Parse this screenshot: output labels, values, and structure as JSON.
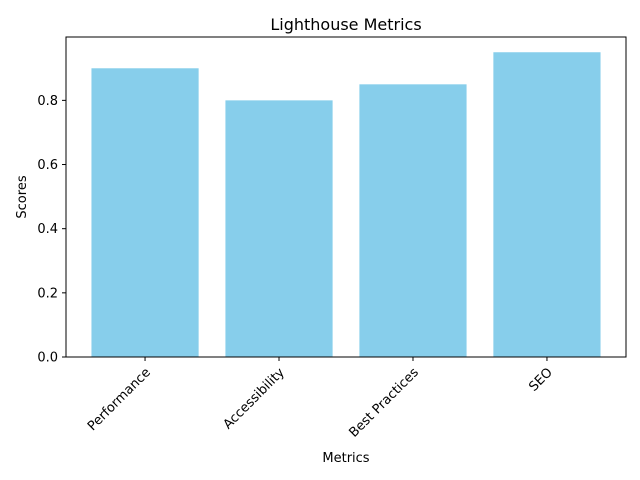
{
  "chart_data": {
    "type": "bar",
    "title": "Lighthouse Metrics",
    "xlabel": "Metrics",
    "ylabel": "Scores",
    "categories": [
      "Performance",
      "Accessibility",
      "Best Practices",
      "SEO"
    ],
    "values": [
      0.9,
      0.8,
      0.85,
      0.95
    ],
    "ylim": [
      0,
      0.9975
    ],
    "yticks": [
      0.0,
      0.2,
      0.4,
      0.6,
      0.8
    ],
    "ytick_labels": [
      "0.0",
      "0.2",
      "0.4",
      "0.6",
      "0.8"
    ],
    "xtick_rotation": 45,
    "grid": false,
    "legend": "none",
    "bar_color": "#87ceeb"
  }
}
